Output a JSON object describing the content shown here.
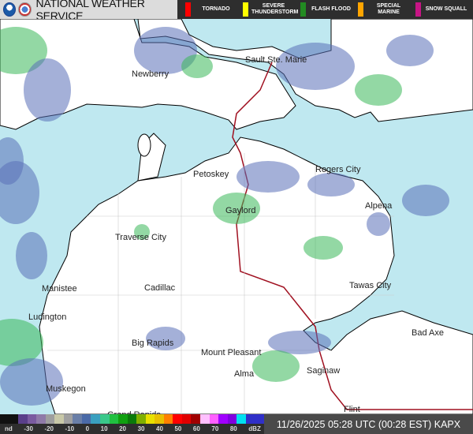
{
  "header": {
    "title": "NATIONAL WEATHER SERVICE",
    "legend": [
      {
        "label": "TORNADO",
        "color": "#ff0000"
      },
      {
        "label": "SEVERE THUNDERSTORM",
        "color": "#ffff00"
      },
      {
        "label": "FLASH FLOOD",
        "color": "#228b22"
      },
      {
        "label": "SPECIAL MARINE",
        "color": "#ffa500"
      },
      {
        "label": "SNOW SQUALL",
        "color": "#c71585"
      }
    ]
  },
  "map": {
    "cities": [
      "Newberry",
      "Sault Ste. Marie",
      "Petoskey",
      "Rogers City",
      "Gaylord",
      "Alpena",
      "Traverse City",
      "Manistee",
      "Cadillac",
      "Tawas City",
      "Ludington",
      "Big Rapids",
      "Mount Pleasant",
      "Bad Axe",
      "Alma",
      "Saginaw",
      "Muskegon",
      "Flint",
      "Grand Rapids"
    ],
    "colors": {
      "water": "#bfe8f0",
      "land": "#ffffff"
    }
  },
  "colorbar": {
    "ticks": [
      "nd",
      "-30",
      "-20",
      "-10",
      "0",
      "10",
      "20",
      "30",
      "40",
      "50",
      "60",
      "70",
      "80",
      "dBZ"
    ],
    "colors": [
      "#111",
      "#111",
      "#5a3f8a",
      "#7a5ba0",
      "#8f7aa8",
      "#9e9e9e",
      "#c8c8a8",
      "#a0a0a0",
      "#6a7fa8",
      "#4a6aa8",
      "#3aa0c0",
      "#3ac88a",
      "#20c040",
      "#10a010",
      "#0a7a0a",
      "#80b000",
      "#e8e000",
      "#e8c000",
      "#ff8000",
      "#ff0000",
      "#e00000",
      "#a00000",
      "#ffc0ff",
      "#ff60ff",
      "#a000ff",
      "#8000e0",
      "#00e0f0",
      "#3030c8",
      "#3030c8"
    ]
  },
  "timestamp": "11/26/2025 05:28 UTC (00:28 EST) KAPX"
}
